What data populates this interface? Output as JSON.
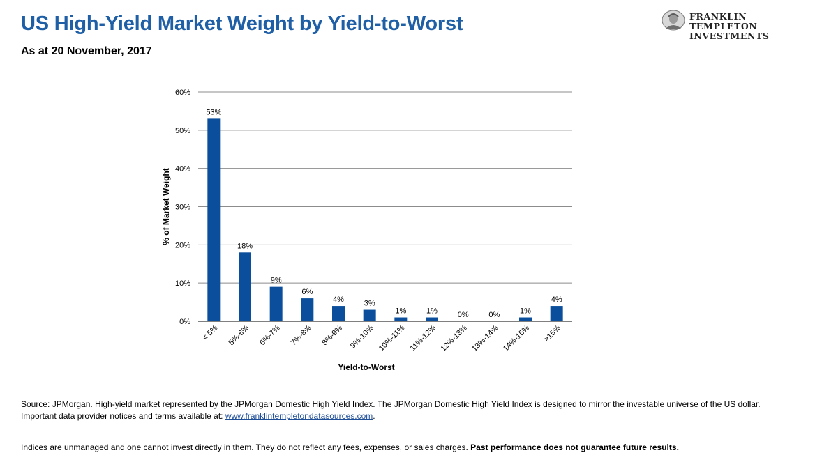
{
  "header": {
    "title": "US High-Yield Market Weight by Yield-to-Worst",
    "subtitle": "As at 20 November, 2017"
  },
  "logo": {
    "line1": "FRANKLIN TEMPLETON",
    "line2": "INVESTMENTS",
    "icon": "franklin-portrait-icon"
  },
  "chart_data": {
    "type": "bar",
    "categories": [
      "< 5%",
      "5%-6%",
      "6%-7%",
      "7%-8%",
      "8%-9%",
      "9%-10%",
      "10%-11%",
      "11%-12%",
      "12%-13%",
      "13%-14%",
      "14%-15%",
      ">15%"
    ],
    "values": [
      53,
      18,
      9,
      6,
      4,
      3,
      1,
      1,
      0,
      0,
      1,
      4
    ],
    "data_labels": [
      "53%",
      "18%",
      "9%",
      "6%",
      "4%",
      "3%",
      "1%",
      "1%",
      "0%",
      "0%",
      "1%",
      "4%"
    ],
    "xlabel": "Yield-to-Worst",
    "ylabel": "% of Market Weight",
    "ylim": [
      0,
      60
    ],
    "yticks": [
      0,
      10,
      20,
      30,
      40,
      50,
      60
    ],
    "ytick_labels": [
      "0%",
      "10%",
      "20%",
      "30%",
      "40%",
      "50%",
      "60%"
    ],
    "grid": true,
    "legend": "none",
    "bar_color": "#0b4f9c"
  },
  "footer": {
    "source_text": "Source: JPMorgan. High-yield market represented by the JPMorgan Domestic High Yield Index. The JPMorgan Domestic High Yield Index is designed to mirror the investable universe of the US dollar. Important data provider notices and terms available at: ",
    "source_link": "www.franklintempletondatasources.com",
    "source_end": ".",
    "disclaimer": "Indices are unmanaged and one cannot invest directly in them. They do not reflect any fees, expenses, or sales charges. ",
    "disclaimer_bold": "Past performance does not guarantee future results."
  },
  "colors": {
    "title": "#1f5fa6",
    "bar": "#0b4f9c",
    "grid": "#8c8c8c",
    "link": "#1f4e99"
  }
}
